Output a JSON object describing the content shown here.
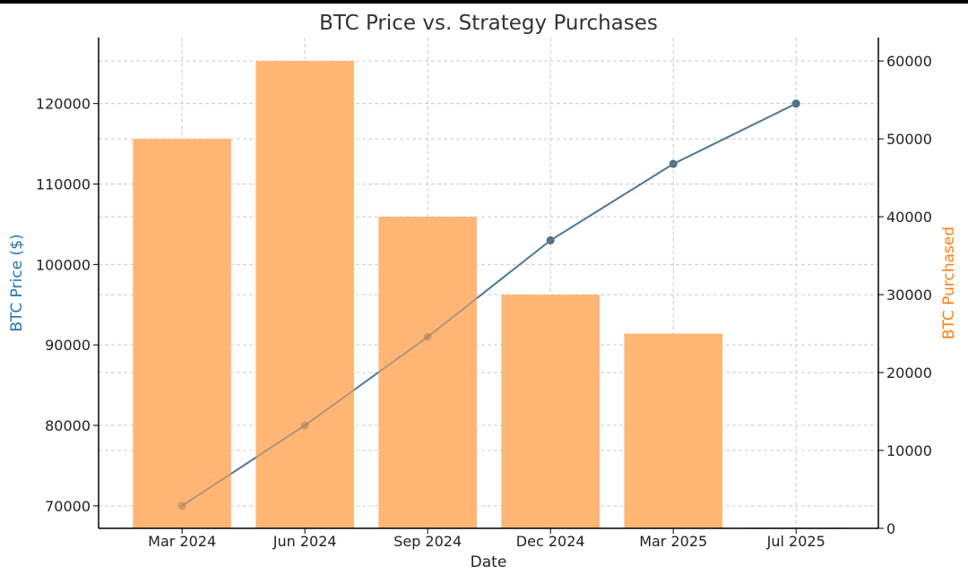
{
  "chart_data": {
    "type": "bar+line",
    "title": "BTC Price vs. Strategy Purchases",
    "xlabel": "Date",
    "categories": [
      "Mar 2024",
      "Jun 2024",
      "Sep 2024",
      "Dec 2024",
      "Mar 2025",
      "Jul 2025"
    ],
    "bars": {
      "axis": "right",
      "ylabel": "BTC Purchased",
      "color": "#ffb26e",
      "values": [
        50000,
        60000,
        40000,
        30000,
        25000,
        100
      ]
    },
    "line": {
      "axis": "left",
      "ylabel": "BTC Price ($)",
      "color": "#1f77b4",
      "values": [
        70000,
        80000,
        91000,
        103000,
        112500,
        120000
      ]
    },
    "left_axis": {
      "ylim": [
        67200,
        128200
      ],
      "ticks": [
        70000,
        80000,
        90000,
        100000,
        110000,
        120000
      ],
      "label_color": "#1f77b4"
    },
    "right_axis": {
      "ylim": [
        0,
        63000
      ],
      "ticks": [
        0,
        10000,
        20000,
        30000,
        40000,
        50000,
        60000
      ],
      "label_color": "#ff7f0e"
    },
    "grid": true
  }
}
